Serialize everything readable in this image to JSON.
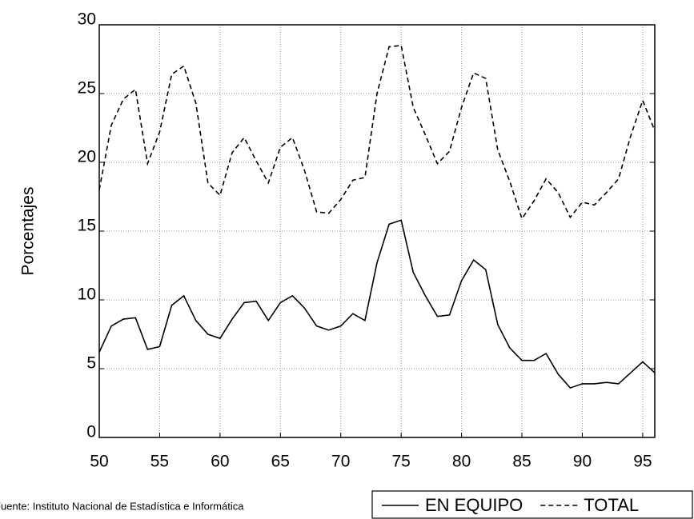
{
  "chart_data": {
    "type": "line",
    "y_label": "Porcentajes",
    "source": "Fuente: Instituto Nacional de Estadística e Informática",
    "x": [
      50,
      51,
      52,
      53,
      54,
      55,
      56,
      57,
      58,
      59,
      60,
      61,
      62,
      63,
      64,
      65,
      66,
      67,
      68,
      69,
      70,
      71,
      72,
      73,
      74,
      75,
      76,
      77,
      78,
      79,
      80,
      81,
      82,
      83,
      84,
      85,
      86,
      87,
      88,
      89,
      90,
      91,
      92,
      93,
      94,
      95,
      96
    ],
    "series": [
      {
        "name": "EN EQUIPO",
        "color": "#000000",
        "linestyle": "solid",
        "values": [
          6.2,
          8.1,
          8.6,
          8.7,
          6.4,
          6.6,
          9.6,
          10.3,
          8.5,
          7.5,
          7.2,
          8.6,
          9.8,
          9.9,
          8.5,
          9.8,
          10.3,
          9.4,
          8.1,
          7.8,
          8.1,
          9.0,
          8.5,
          12.7,
          15.5,
          15.8,
          12.0,
          10.3,
          8.8,
          8.9,
          11.4,
          12.9,
          12.2,
          8.2,
          6.5,
          5.6,
          5.6,
          6.1,
          4.6,
          3.6,
          3.9,
          3.9,
          4.0,
          3.9,
          4.7,
          5.5,
          4.7
        ]
      },
      {
        "name": "TOTAL",
        "color": "#000000",
        "linestyle": "dashed",
        "values": [
          18.0,
          22.7,
          24.6,
          25.3,
          19.9,
          22.2,
          26.4,
          27.0,
          24.3,
          18.5,
          17.6,
          20.7,
          21.8,
          20.1,
          18.5,
          21.1,
          21.8,
          19.4,
          16.4,
          16.3,
          17.3,
          18.7,
          18.9,
          25.0,
          28.4,
          28.5,
          24.0,
          22.0,
          19.9,
          20.8,
          24.0,
          26.5,
          26.1,
          20.9,
          18.6,
          15.9,
          17.2,
          18.8,
          17.8,
          16.0,
          17.1,
          16.9,
          17.8,
          18.8,
          21.9,
          24.5,
          22.3
        ]
      }
    ],
    "xlim": [
      50,
      96
    ],
    "xticks": [
      50,
      55,
      60,
      65,
      70,
      75,
      80,
      85,
      90,
      95
    ],
    "ylim": [
      0,
      30
    ],
    "yticks": [
      0,
      5,
      10,
      15,
      20,
      25,
      30
    ],
    "grid": true,
    "legend": "bottom-right"
  }
}
